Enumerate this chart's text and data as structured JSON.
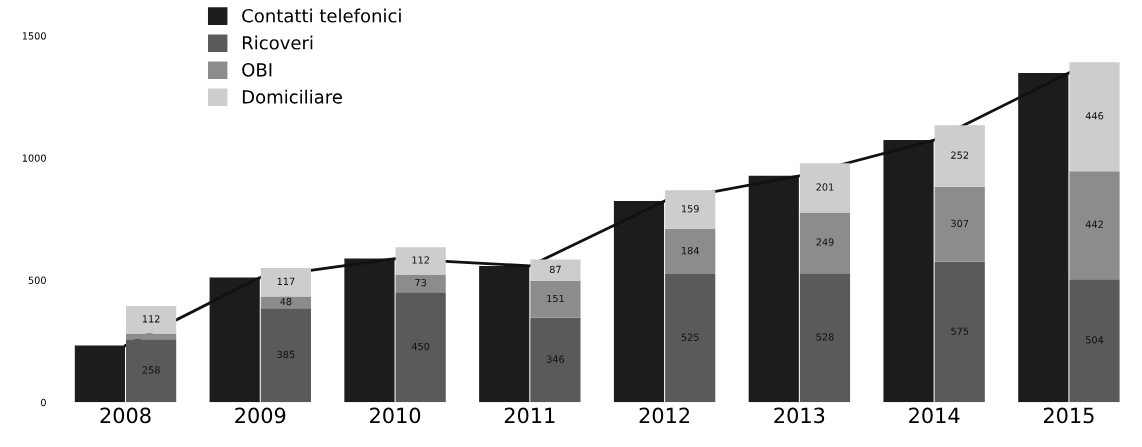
{
  "chart_data": [
    {
      "type": "bar",
      "categories": [
        "2008",
        "2009",
        "2010",
        "2011",
        "2012",
        "2013",
        "2014",
        "2015"
      ],
      "series": [
        {
          "name": "Contatti telefonici",
          "color": "#1c1c1c",
          "values": [
            232,
            511,
            588,
            558,
            824,
            927,
            1073,
            1348
          ]
        },
        {
          "type": "line",
          "color": "#111111",
          "values": [
            232,
            511,
            588,
            558,
            824,
            927,
            1073,
            1348
          ]
        }
      ],
      "ylim": [
        0,
        1500
      ],
      "yticks": [
        0,
        500,
        1000,
        1500
      ],
      "grid": false,
      "legend": "top left"
    },
    {
      "type": "bar",
      "stacked": true,
      "categories": [
        "2008",
        "2009",
        "2010",
        "2011",
        "2012",
        "2013",
        "2014",
        "2015"
      ],
      "series": [
        {
          "name": "Ricoveri",
          "color": "#5a5a5a",
          "values": [
            258,
            385,
            450,
            346,
            525,
            528,
            575,
            504
          ],
          "value_labels": [
            "258",
            "385",
            "450",
            "346",
            "525",
            "528",
            "575",
            "504"
          ]
        },
        {
          "name": "OBI",
          "color": "#8c8c8c",
          "values": [
            24,
            48,
            73,
            151,
            184,
            249,
            307,
            442
          ],
          "value_labels": [
            null,
            "48",
            "73",
            "151",
            "184",
            "249",
            "307",
            "442"
          ]
        },
        {
          "name": "Domiciliare",
          "color": "#cdcdcd",
          "values": [
            112,
            117,
            112,
            87,
            159,
            201,
            252,
            446
          ],
          "value_labels": [
            "112",
            "117",
            "112",
            "87",
            "159",
            "201",
            "252",
            "446"
          ]
        }
      ],
      "ylim": [
        0,
        1500
      ],
      "tick_labels": false,
      "grid": false,
      "legend": "top left"
    }
  ]
}
